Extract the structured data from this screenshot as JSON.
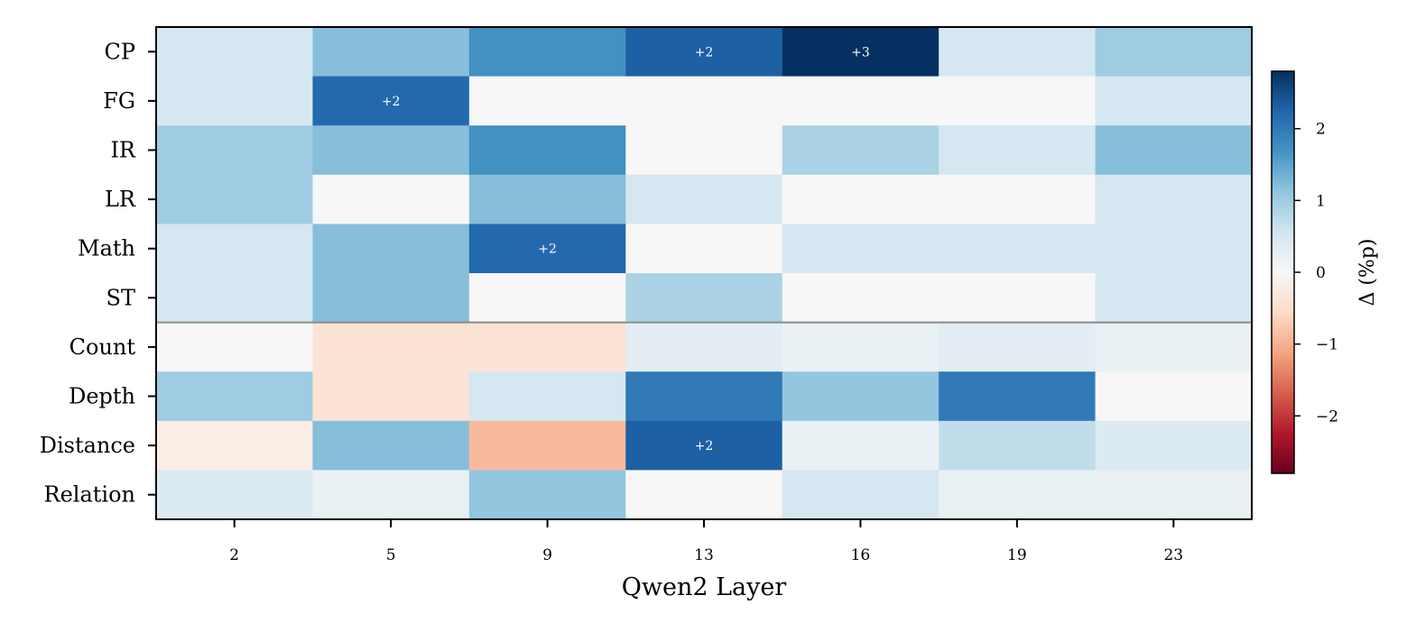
{
  "chart_data": {
    "type": "heatmap",
    "title": "",
    "xlabel": "Qwen2 Layer",
    "ylabel": "",
    "x": [
      "2",
      "5",
      "9",
      "13",
      "16",
      "19",
      "23"
    ],
    "y": [
      "CP",
      "FG",
      "IR",
      "LR",
      "Math",
      "ST",
      "Count",
      "Depth",
      "Distance",
      "Relation"
    ],
    "values": [
      [
        0.5,
        1.2,
        1.7,
        2.3,
        2.8,
        0.5,
        1.0
      ],
      [
        0.5,
        2.2,
        0.0,
        0.0,
        0.0,
        0.0,
        0.5
      ],
      [
        1.0,
        1.2,
        1.7,
        0.0,
        0.9,
        0.5,
        1.2
      ],
      [
        1.0,
        0.0,
        1.2,
        0.5,
        0.0,
        0.0,
        0.5
      ],
      [
        0.5,
        1.2,
        2.2,
        0.0,
        0.5,
        0.5,
        0.5
      ],
      [
        0.5,
        1.2,
        0.0,
        0.9,
        0.0,
        0.0,
        0.5
      ],
      [
        0.0,
        -0.4,
        -0.4,
        0.3,
        0.2,
        0.3,
        0.2
      ],
      [
        1.0,
        -0.4,
        0.5,
        2.0,
        1.1,
        2.0,
        0.0
      ],
      [
        -0.2,
        1.2,
        -0.9,
        2.3,
        0.2,
        0.7,
        0.4
      ],
      [
        0.4,
        0.2,
        1.1,
        0.0,
        0.5,
        0.2,
        0.2
      ]
    ],
    "annotations": [
      {
        "row": 0,
        "col": 3,
        "text": "+2"
      },
      {
        "row": 0,
        "col": 4,
        "text": "+3"
      },
      {
        "row": 1,
        "col": 1,
        "text": "+2"
      },
      {
        "row": 4,
        "col": 2,
        "text": "+2"
      },
      {
        "row": 8,
        "col": 3,
        "text": "+2"
      }
    ],
    "group_separator_after_row": 5,
    "colormap": "RdBu",
    "vmin": -2.8,
    "vmax": 2.8,
    "colorbar": {
      "label": "Δ (%p)",
      "ticks": [
        2,
        1,
        0,
        -1,
        -2
      ],
      "tick_labels": [
        "2",
        "1",
        "0",
        "−1",
        "−2"
      ],
      "placement": "right"
    },
    "grid": false,
    "legend": "none"
  }
}
